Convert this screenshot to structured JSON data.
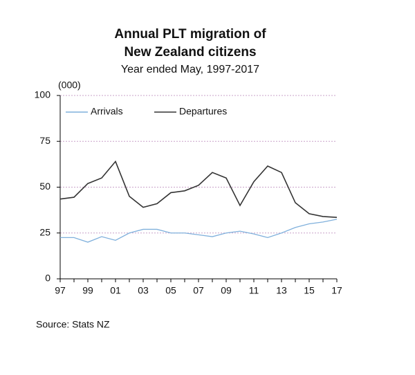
{
  "chart_data": {
    "type": "line",
    "title": [
      "Annual PLT migration of",
      "New Zealand citizens"
    ],
    "subtitle": "Year ended May, 1997-2017",
    "y_label": "(000)",
    "source": "Source: Stats NZ",
    "categories": [
      "97",
      null,
      "99",
      null,
      "01",
      null,
      "03",
      null,
      "05",
      null,
      "07",
      null,
      "09",
      null,
      "11",
      null,
      "13",
      null,
      "15",
      null,
      "17"
    ],
    "series": [
      {
        "name": "Arrivals",
        "color": "#7fb0dc",
        "values": [
          22.5,
          22.5,
          20,
          23,
          21,
          25,
          27,
          27,
          25,
          25,
          24,
          23,
          25,
          26,
          24.5,
          22.5,
          25,
          28,
          30,
          31,
          32.5
        ]
      },
      {
        "name": "Departures",
        "color": "#333333",
        "values": [
          43.5,
          44.5,
          52,
          55,
          64,
          45,
          39,
          41,
          47,
          48,
          51,
          58,
          55,
          40,
          53,
          61.5,
          58,
          41.5,
          35.5,
          34,
          33.5
        ]
      }
    ],
    "ylim": [
      0,
      100
    ],
    "yticks": [
      0,
      25,
      50,
      75,
      100
    ],
    "grid": true,
    "legend": "top-left"
  }
}
